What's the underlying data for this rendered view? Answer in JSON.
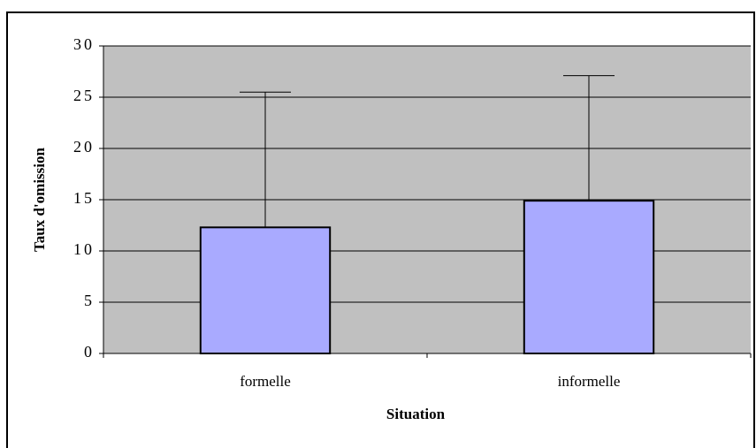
{
  "chart_data": {
    "type": "bar",
    "xlabel": "Situation",
    "ylabel": "Taux d'omission",
    "categories": [
      "formelle",
      "informelle"
    ],
    "values": [
      12.3,
      14.9
    ],
    "errors": [
      13.2,
      12.2
    ],
    "color": "#a9aaff",
    "ylim": [
      0,
      30
    ],
    "yticks": [
      0,
      5,
      10,
      15,
      20,
      25,
      30
    ],
    "grid": true
  }
}
